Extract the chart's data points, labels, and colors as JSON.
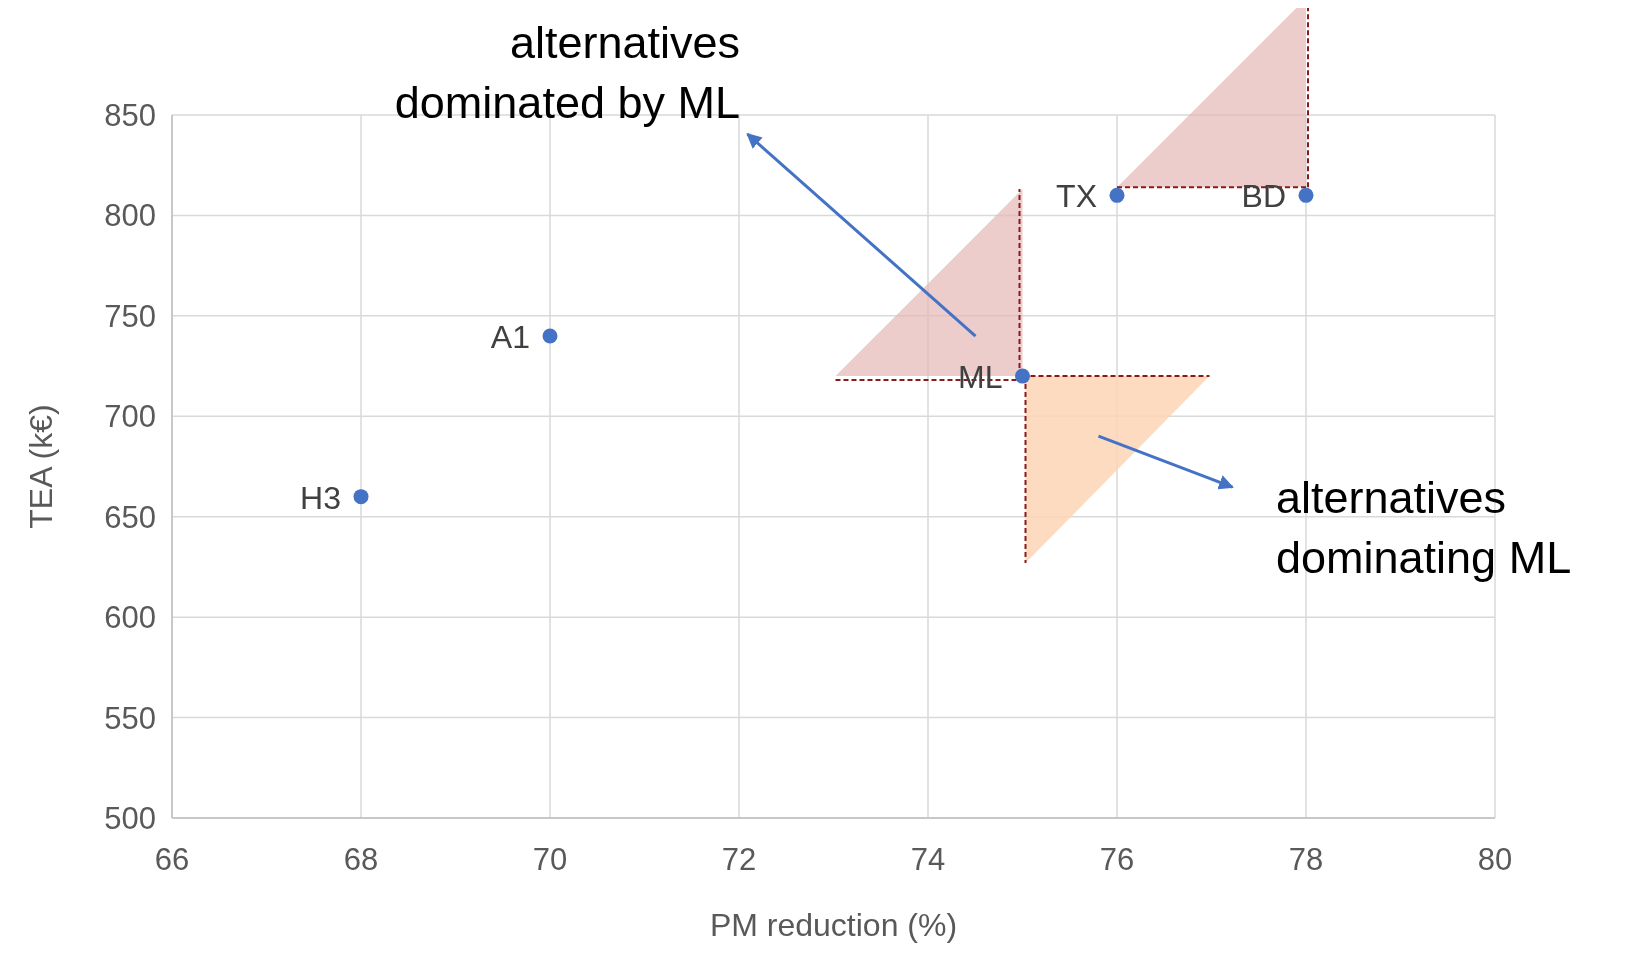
{
  "chart_data": {
    "type": "scatter",
    "xlabel": "PM reduction (%)",
    "ylabel": "TEA (k€)",
    "x": [
      68,
      70,
      75,
      76,
      78
    ],
    "values": [
      660,
      740,
      720,
      810,
      810
    ],
    "color": "#4472c4",
    "marker": "circle",
    "grid": true,
    "xlim": [
      66,
      80
    ],
    "xticks": [
      66,
      68,
      70,
      72,
      74,
      76,
      78,
      80
    ],
    "ylim": [
      500,
      850
    ],
    "yticks": [
      500,
      550,
      600,
      650,
      700,
      750,
      800,
      850
    ],
    "annotations": [
      {
        "text": "H3",
        "x": 68,
        "y": 660
      },
      {
        "text": "A1",
        "x": 70,
        "y": 740
      },
      {
        "text": "ML",
        "x": 75,
        "y": 720
      },
      {
        "text": "TX",
        "x": 76,
        "y": 810
      },
      {
        "text": "BD",
        "x": 78,
        "y": 810
      },
      "alternatives\ndominated by ML",
      "alternatives\ndominating ML"
    ]
  }
}
